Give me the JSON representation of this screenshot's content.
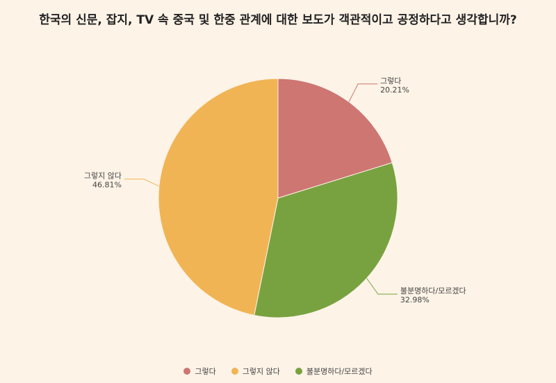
{
  "chart_data": {
    "type": "pie",
    "title": "한국의 신문, 잡지, TV 속 중국 및 한중 관계에 대한 보도가 객관적이고 공정하다고 생각합니까?",
    "slices": [
      {
        "label": "그렇다",
        "value": 20.21,
        "value_label": "20.21%",
        "color": "#cd7672"
      },
      {
        "label": "불분명하다/모르겠다",
        "value": 32.98,
        "value_label": "32.98%",
        "color": "#78a240"
      },
      {
        "label": "그렇지 않다",
        "value": 46.81,
        "value_label": "46.81%",
        "color": "#f1b454"
      }
    ],
    "legend": [
      {
        "label": "그렇다",
        "color": "#cd7672"
      },
      {
        "label": "그렇지 않다",
        "color": "#f1b454"
      },
      {
        "label": "불분명하다/모르겠다",
        "color": "#78a240"
      }
    ],
    "legend_position": "bottom"
  }
}
